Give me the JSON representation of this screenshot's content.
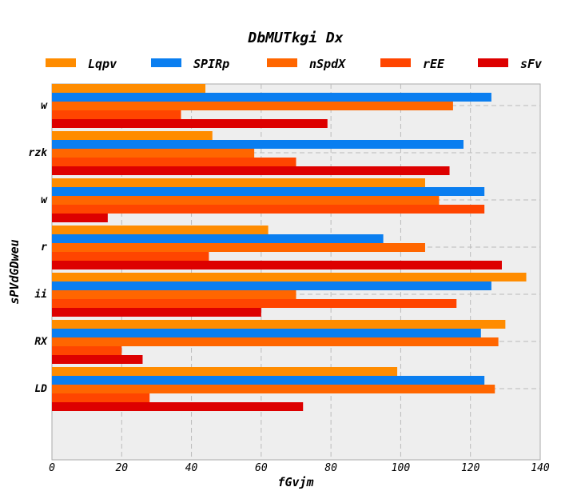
{
  "chart_data": {
    "type": "bar",
    "orientation": "horizontal",
    "title": "DbMUTkgi Dx",
    "xlabel": "fGvjm",
    "ylabel": "sPVdGDweu",
    "categories": [
      "w",
      "rzk",
      "w",
      "r",
      "ii",
      "RX",
      "LD"
    ],
    "xlim": [
      0,
      140
    ],
    "xticks": [
      0,
      20,
      40,
      60,
      80,
      100,
      120,
      140
    ],
    "grid": true,
    "legend_position": "top",
    "series": [
      {
        "name": "Lqpv",
        "color": "#ff8c00",
        "values": [
          44,
          46,
          107,
          62,
          136,
          130,
          99
        ]
      },
      {
        "name": "SPIRp",
        "color": "#0a7ef0",
        "values": [
          126,
          118,
          124,
          95,
          126,
          123,
          124
        ]
      },
      {
        "name": "nSpdX",
        "color": "#ff6600",
        "values": [
          115,
          58,
          111,
          107,
          70,
          128,
          127
        ]
      },
      {
        "name": "rEE",
        "color": "#ff4500",
        "values": [
          37,
          70,
          124,
          45,
          116,
          20,
          28
        ]
      },
      {
        "name": "sFv",
        "color": "#dd0000",
        "values": [
          79,
          114,
          16,
          129,
          60,
          26,
          72
        ]
      }
    ]
  }
}
